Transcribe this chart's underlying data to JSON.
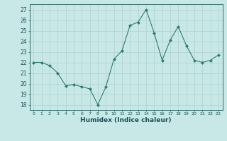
{
  "x": [
    0,
    1,
    2,
    3,
    4,
    5,
    6,
    7,
    8,
    9,
    10,
    11,
    12,
    13,
    14,
    15,
    16,
    17,
    18,
    19,
    20,
    21,
    22,
    23
  ],
  "y": [
    22,
    22,
    21.7,
    21,
    19.8,
    19.9,
    19.7,
    19.5,
    18,
    19.7,
    22.3,
    23.1,
    25.5,
    25.8,
    27,
    24.8,
    22.2,
    24.1,
    25.4,
    23.6,
    22.2,
    22,
    22.2,
    22.7
  ],
  "line_color": "#2e7d6e",
  "marker": "D",
  "marker_size": 2.0,
  "bg_color": "#c8e8e8",
  "grid_color": "#b0d0d0",
  "ylabel_ticks": [
    18,
    19,
    20,
    21,
    22,
    23,
    24,
    25,
    26,
    27
  ],
  "xlabel": "Humidex (Indice chaleur)",
  "xlim": [
    -0.5,
    23.5
  ],
  "ylim": [
    17.5,
    27.5
  ]
}
